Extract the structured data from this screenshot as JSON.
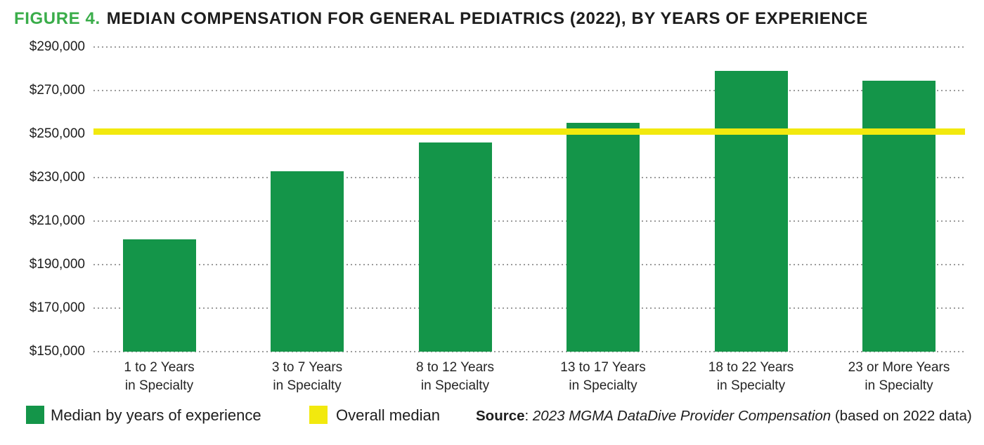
{
  "title": {
    "prefix": "FIGURE 4.",
    "text": "MEDIAN COMPENSATION FOR GENERAL PEDIATRICS (2022), BY YEARS OF EXPERIENCE"
  },
  "colors": {
    "bar_green": "#149549",
    "title_green": "#3aad4a",
    "overall_median_yellow": "#f2e90e",
    "gridline_gray": "#9c9c9c",
    "text_black": "#1d1d1d"
  },
  "chart_data": {
    "type": "bar",
    "title": "FIGURE 4. MEDIAN COMPENSATION FOR GENERAL PEDIATRICS (2022), BY YEARS OF EXPERIENCE",
    "categories": [
      "1 to 2 Years\nin Specialty",
      "3 to 7 Years\nin Specialty",
      "8 to 12 Years\nin Specialty",
      "13 to 17 Years\nin Specialty",
      "18 to 22 Years\nin Specialty",
      "23 or More Years\nin Specialty"
    ],
    "values": [
      201500,
      233000,
      246000,
      255000,
      279000,
      274500
    ],
    "overall_median": 251000,
    "xlabel": "",
    "ylabel": "",
    "ylim": [
      150000,
      290000
    ],
    "y_tick_interval": 20000,
    "y_ticks": [
      "$290,000",
      "$270,000",
      "$250,000",
      "$230,000",
      "$210,000",
      "$190,000",
      "$170,000",
      "$150,000"
    ],
    "grid": "horizontal dotted",
    "legend_position": "bottom-left",
    "legend": [
      {
        "label": "Median by years of experience",
        "color": "#149549",
        "marker": "square"
      },
      {
        "label": "Overall median",
        "color": "#f2e90e",
        "marker": "square"
      }
    ]
  },
  "source": {
    "label": "Source",
    "colon": ": ",
    "citation": "2023 MGMA DataDive Provider Compensation",
    "suffix": " (based on 2022 data)"
  }
}
